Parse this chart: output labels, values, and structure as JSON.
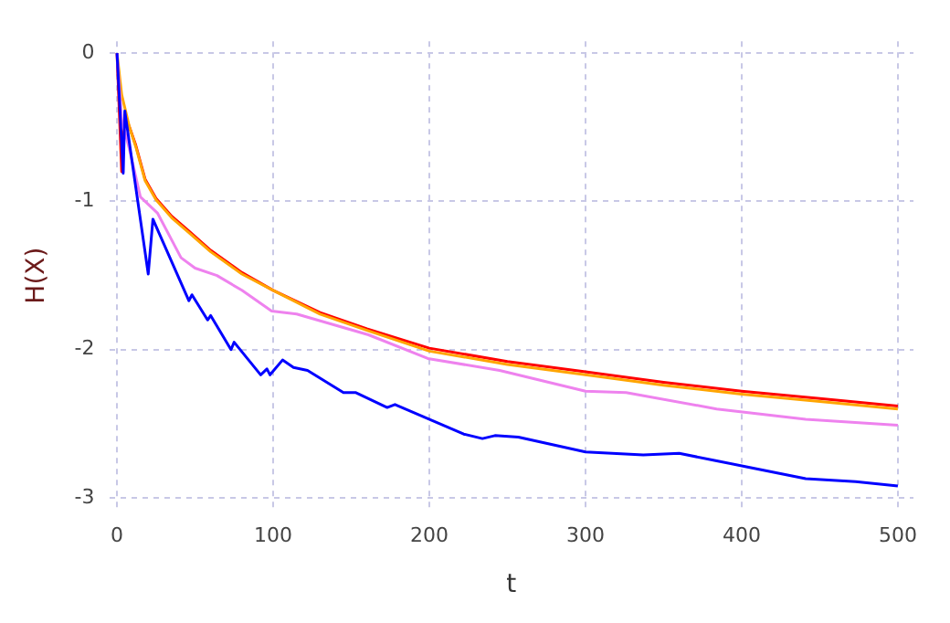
{
  "chart_data": {
    "type": "line",
    "xlabel": "t",
    "ylabel": "H(X)",
    "xlim": [
      -5,
      510
    ],
    "ylim": [
      -3.08,
      0.08
    ],
    "xticks": [
      0,
      100,
      200,
      300,
      400,
      500
    ],
    "yticks": [
      -3,
      -2,
      -1,
      0
    ],
    "grid": true,
    "legend": false,
    "marker": "none",
    "line_style": "solid",
    "series": [
      {
        "color": "#0000ff",
        "x": [
          0,
          4,
          5,
          20,
          23,
          46,
          48,
          58,
          60,
          73,
          75,
          92,
          96,
          98,
          106,
          113,
          122,
          145,
          153,
          173,
          178,
          222,
          234,
          242,
          257,
          300,
          337,
          360,
          384,
          403,
          441,
          473,
          500
        ],
        "values": [
          0,
          -0.81,
          -0.39,
          -1.49,
          -1.12,
          -1.67,
          -1.63,
          -1.8,
          -1.77,
          -2.0,
          -1.95,
          -2.17,
          -2.13,
          -2.17,
          -2.07,
          -2.12,
          -2.14,
          -2.29,
          -2.29,
          -2.39,
          -2.37,
          -2.57,
          -2.6,
          -2.58,
          -2.59,
          -2.69,
          -2.71,
          -2.7,
          -2.75,
          -2.79,
          -2.87,
          -2.89,
          -2.92
        ]
      },
      {
        "color": "#ee82ee",
        "x": [
          0,
          3,
          8,
          15,
          26,
          41,
          50,
          64,
          80,
          99,
          115,
          161,
          199,
          245,
          300,
          326,
          384,
          441,
          500
        ],
        "values": [
          0,
          -0.45,
          -0.65,
          -0.97,
          -1.08,
          -1.38,
          -1.45,
          -1.5,
          -1.6,
          -1.74,
          -1.76,
          -1.9,
          -2.06,
          -2.14,
          -2.28,
          -2.29,
          -2.4,
          -2.47,
          -2.51
        ]
      },
      {
        "color": "#ffa500",
        "x": [
          0,
          3,
          8,
          12,
          18,
          25,
          35,
          46,
          60,
          80,
          100,
          130,
          160,
          200,
          250,
          300,
          350,
          400,
          450,
          500
        ],
        "values": [
          0,
          -0.28,
          -0.5,
          -0.63,
          -0.86,
          -0.99,
          -1.11,
          -1.21,
          -1.34,
          -1.49,
          -1.6,
          -1.76,
          -1.87,
          -2.01,
          -2.1,
          -2.17,
          -2.24,
          -2.3,
          -2.35,
          -2.4
        ]
      },
      {
        "color": "#ff0000",
        "x": [
          0,
          3,
          5,
          8,
          12,
          18,
          25,
          35,
          46,
          60,
          80,
          100,
          130,
          160,
          200,
          250,
          300,
          350,
          400,
          450,
          500
        ],
        "values": [
          0,
          -0.8,
          -0.42,
          -0.5,
          -0.62,
          -0.85,
          -0.98,
          -1.1,
          -1.2,
          -1.33,
          -1.48,
          -1.6,
          -1.75,
          -1.86,
          -1.99,
          -2.08,
          -2.15,
          -2.22,
          -2.28,
          -2.33,
          -2.38
        ]
      }
    ]
  }
}
